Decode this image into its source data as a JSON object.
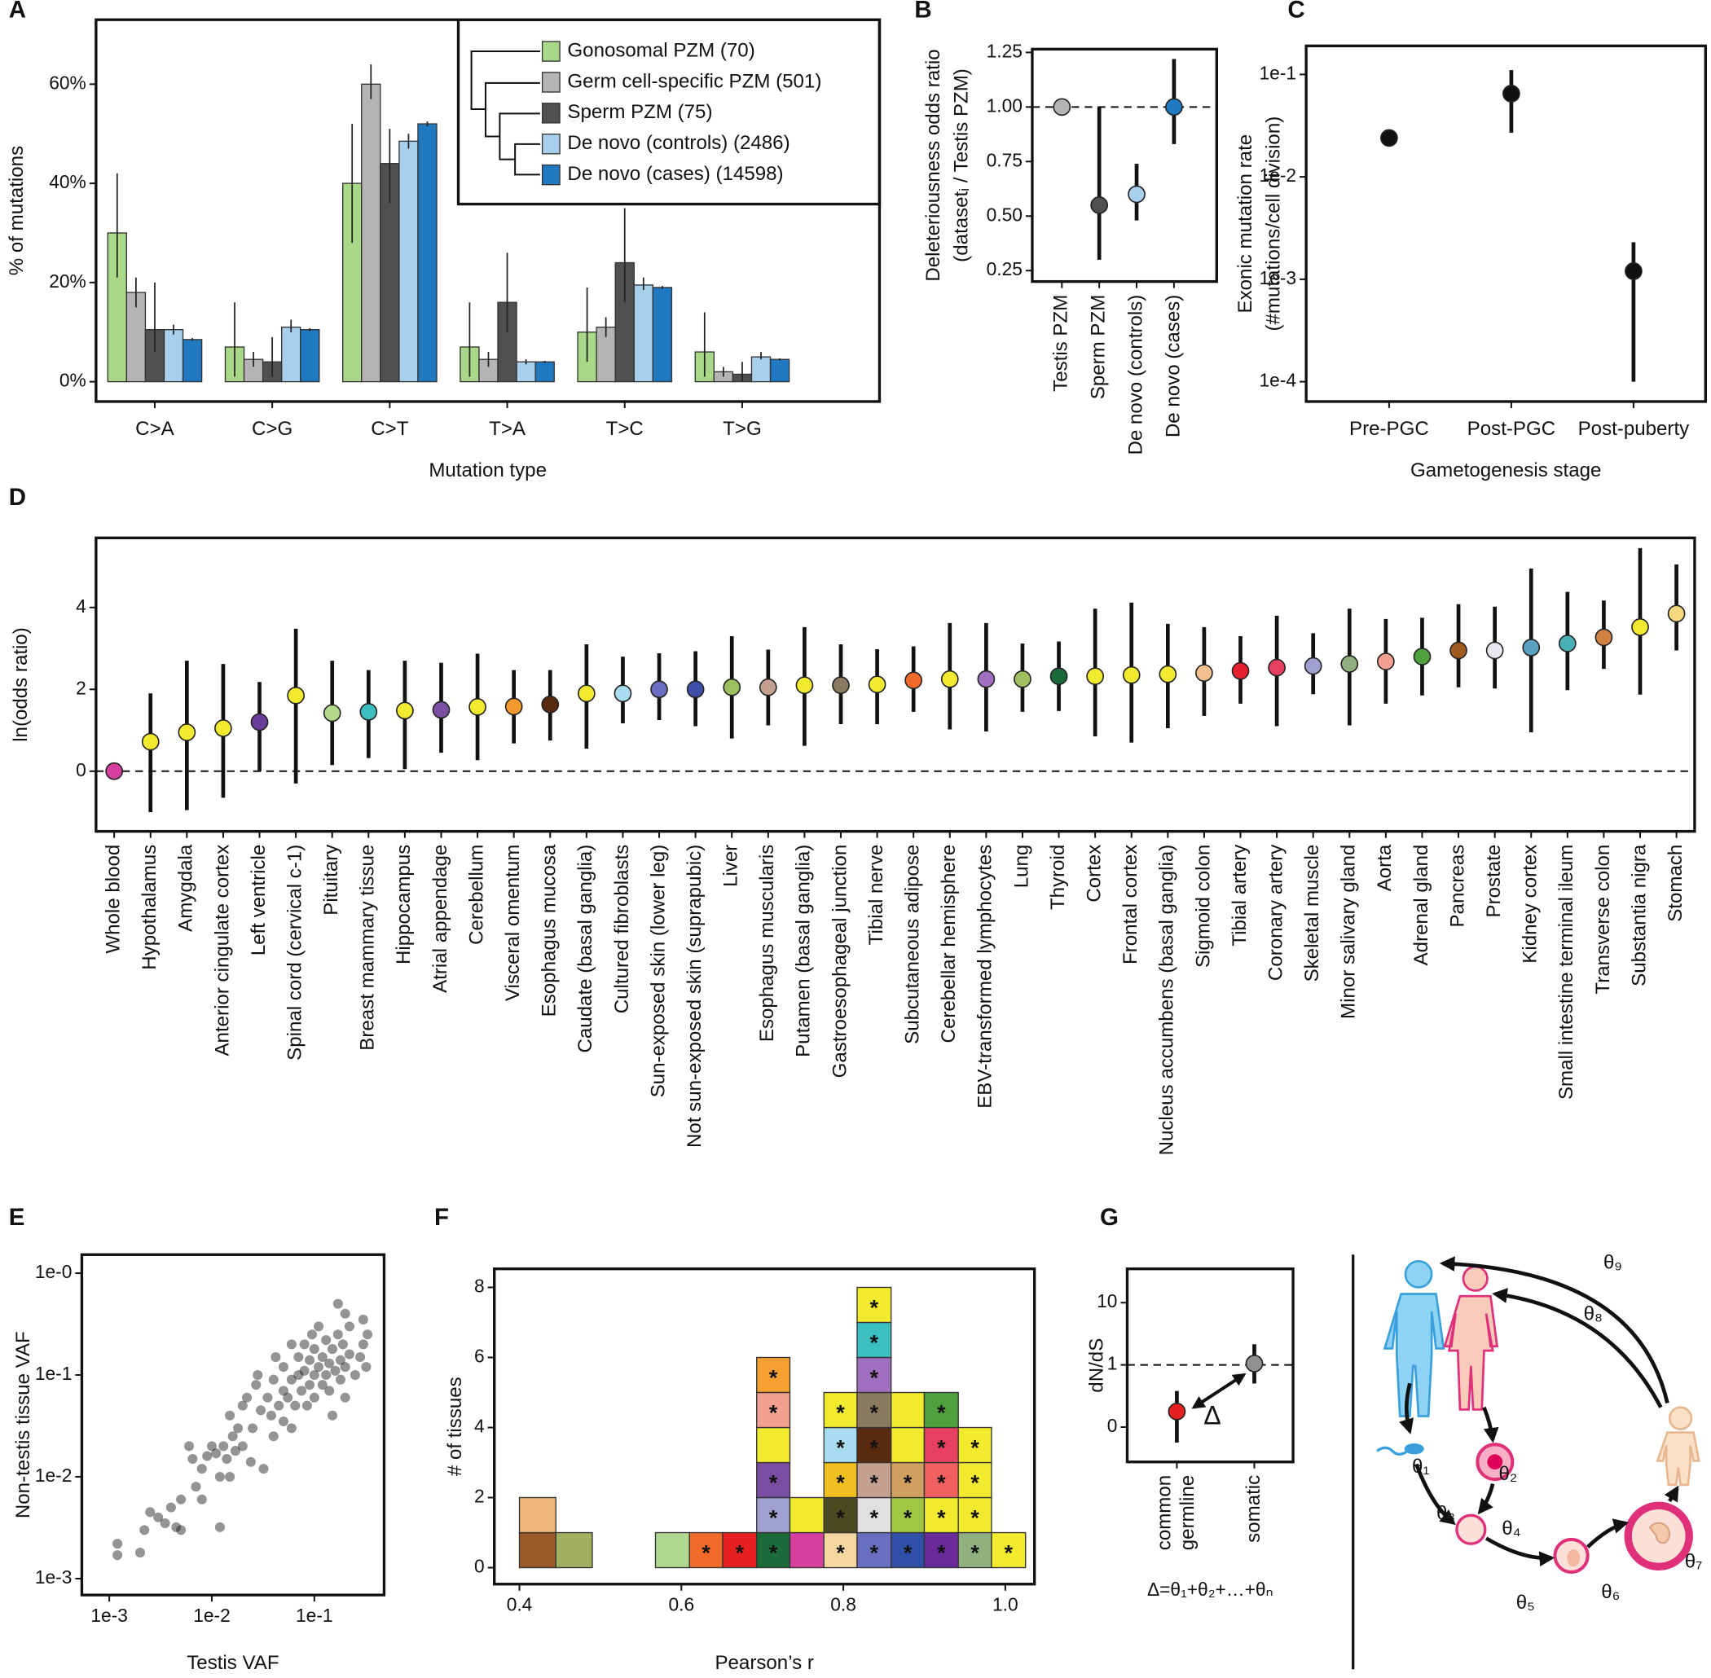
{
  "chart_data": [
    {
      "panel": "A",
      "type": "bar",
      "categories": [
        "C>A",
        "C>G",
        "C>T",
        "T>A",
        "T>C",
        "T>G"
      ],
      "series": [
        {
          "name": "Gonosomal PZM (70)",
          "color": "#a8d888",
          "values": [
            30,
            7,
            40,
            7,
            10,
            6
          ],
          "lower": [
            21,
            1,
            28,
            1,
            4,
            1
          ],
          "upper": [
            42,
            16,
            52,
            16,
            19,
            14
          ]
        },
        {
          "name": "Germ cell-specific PZM (501)",
          "color": "#b4b4b4",
          "values": [
            18,
            4.5,
            60,
            4.5,
            11,
            2
          ],
          "lower": [
            15,
            3,
            57,
            3,
            9,
            1
          ],
          "upper": [
            21,
            6,
            64,
            6,
            13,
            3
          ]
        },
        {
          "name": "Sperm PZM (75)",
          "color": "#505050",
          "values": [
            10.5,
            4,
            44,
            16,
            24,
            1.5
          ],
          "lower": [
            6,
            1,
            36,
            10,
            16,
            0
          ],
          "upper": [
            20,
            9,
            51,
            26,
            35,
            4
          ]
        },
        {
          "name": "De novo (controls) (2486)",
          "color": "#a8d0ec",
          "values": [
            10.5,
            11,
            48.5,
            4,
            19.5,
            5
          ],
          "lower": [
            9.5,
            10,
            47,
            3.5,
            18.5,
            4.5
          ],
          "upper": [
            11.5,
            12.5,
            50,
            4.5,
            21,
            6
          ]
        },
        {
          "name": "De novo (cases) (14598)",
          "color": "#1f78c0",
          "values": [
            8.5,
            10.5,
            52,
            4,
            19,
            4.5
          ],
          "lower": [
            8.3,
            10.2,
            51.5,
            3.8,
            18.7,
            4.3
          ],
          "upper": [
            8.8,
            10.8,
            52.5,
            4.2,
            19.3,
            4.7
          ]
        }
      ],
      "ylim": [
        -4,
        73
      ],
      "yticks": [
        {
          "value": 0,
          "label": "0%"
        },
        {
          "value": 20,
          "label": "20%"
        },
        {
          "value": 40,
          "label": "40%"
        },
        {
          "value": 60,
          "label": "60%"
        }
      ],
      "xlabel": "Mutation type",
      "ylabel": "% of mutations",
      "legend": "top-right"
    },
    {
      "panel": "B",
      "type": "errorbar",
      "categories": [
        "Testis PZM",
        "Sperm PZM",
        "De novo (controls)",
        "De novo (cases)"
      ],
      "values": [
        1.0,
        0.55,
        0.6,
        1.0
      ],
      "lower": [
        null,
        0.3,
        0.48,
        0.83
      ],
      "upper": [
        null,
        1.0,
        0.74,
        1.22
      ],
      "colors": [
        "#b4b4b4",
        "#505050",
        "#a8d0ec",
        "#1f78c0"
      ],
      "ylim": [
        0.2,
        1.265
      ],
      "yticks": [
        0.25,
        {
          "value": 0.5,
          "label": "0.50"
        },
        0.75,
        {
          "value": 1,
          "label": "1.00"
        },
        1.25
      ],
      "hline": 1,
      "ylabel": [
        "Deleteriousness odds ratio",
        "(datasetᵢ / Testis PZM)"
      ]
    },
    {
      "panel": "C",
      "type": "errorbar",
      "categories": [
        "Pre-PGC",
        "Post-PGC",
        "Post-puberty"
      ],
      "values": [
        0.024,
        0.065,
        0.0012
      ],
      "lower": [
        0.02,
        0.027,
        0.0001
      ],
      "upper": [
        0.029,
        0.11,
        0.0023
      ],
      "color": "#111111",
      "yscale": "log",
      "ylim": [
        6.4e-05,
        0.19
      ],
      "yticks": [
        {
          "value": 0.1,
          "label": "1e-1"
        },
        {
          "value": 0.01,
          "label": "1e-2"
        },
        {
          "value": 0.001,
          "label": "1e-3"
        },
        {
          "value": 0.0001,
          "label": "1e-4"
        }
      ],
      "xlabel": "Gametogenesis stage",
      "ylabel": [
        "Exonic mutation rate",
        "(#mutations/cell division)"
      ]
    },
    {
      "panel": "D",
      "type": "errorbar",
      "categories": [
        "Whole blood",
        "Hypothalamus",
        "Amygdala",
        "Anterior cingulate cortex",
        "Left ventricle",
        "Spinal cord (cervical c-1)",
        "Pituitary",
        "Breast mammary tissue",
        "Hippocampus",
        "Atrial appendage",
        "Cerebellum",
        "Visceral omentum",
        "Esophagus mucosa",
        "Caudate (basal ganglia)",
        "Cultured fibroblasts",
        "Sun-exposed skin (lower leg)",
        "Not sun-exposed skin (suprapubic)",
        "Liver",
        "Esophagus muscularis",
        "Putamen (basal ganglia)",
        "Gastroesophageal junction",
        "Tibial nerve",
        "Subcutaneous adipose",
        "Cerebellar hemisphere",
        "EBV-transformed lymphocytes",
        "Lung",
        "Thyroid",
        "Cortex",
        "Frontal cortex",
        "Nucleus accumbens (basal ganglia)",
        "Sigmoid colon",
        "Tibial artery",
        "Coronary artery",
        "Skeletal muscle",
        "Minor salivary gland",
        "Aorta",
        "Adrenal gland",
        "Pancreas",
        "Prostate",
        "Kidney cortex",
        "Small intestine terminal ileum",
        "Transverse colon",
        "Substantia nigra",
        "Stomach"
      ],
      "values": [
        0,
        0.72,
        0.95,
        1.05,
        1.2,
        1.85,
        1.42,
        1.45,
        1.48,
        1.5,
        1.57,
        1.58,
        1.63,
        1.9,
        1.9,
        2.0,
        2.0,
        2.05,
        2.05,
        2.1,
        2.1,
        2.12,
        2.22,
        2.25,
        2.25,
        2.25,
        2.32,
        2.32,
        2.35,
        2.37,
        2.4,
        2.45,
        2.53,
        2.57,
        2.62,
        2.68,
        2.8,
        2.95,
        2.95,
        3.02,
        3.12,
        3.27,
        3.52,
        3.85
      ],
      "lower": [
        null,
        -1.0,
        -0.95,
        -0.65,
        0,
        -0.3,
        0.15,
        0.32,
        0.05,
        0.45,
        0.27,
        0.68,
        0.75,
        0.55,
        1.17,
        1.25,
        1.1,
        0.8,
        1.12,
        0.62,
        1.15,
        1.15,
        1.45,
        1.02,
        0.97,
        1.45,
        1.47,
        0.85,
        0.7,
        1.05,
        1.35,
        1.65,
        1.1,
        1.88,
        1.12,
        1.65,
        1.85,
        2.05,
        2.02,
        0.95,
        1.98,
        2.5,
        1.87,
        2.95
      ],
      "upper": [
        null,
        1.9,
        2.7,
        2.62,
        2.18,
        3.48,
        2.7,
        2.47,
        2.7,
        2.65,
        2.87,
        2.47,
        2.47,
        3.1,
        2.8,
        2.88,
        2.93,
        3.3,
        2.97,
        3.52,
        3.1,
        2.98,
        3.05,
        3.62,
        3.62,
        3.12,
        3.17,
        3.97,
        4.12,
        3.6,
        3.52,
        3.3,
        3.8,
        3.37,
        3.97,
        3.72,
        3.75,
        4.08,
        4.02,
        4.95,
        4.38,
        4.17,
        5.45,
        5.05
      ],
      "colors": [
        "#d63fa0",
        "#f2ea2e",
        "#f2ea2e",
        "#f2ea2e",
        "#6a3d9a",
        "#f2ea2e",
        "#b2d88a",
        "#3bbfbf",
        "#f2ea2e",
        "#7a4ea0",
        "#f2ea2e",
        "#f59a30",
        "#5a2a10",
        "#f2ea2e",
        "#a8dcf0",
        "#6a6ec0",
        "#4050a8",
        "#9cbf60",
        "#c4a090",
        "#f2ea2e",
        "#8c7a60",
        "#f2ea2e",
        "#f26a2a",
        "#f2ea2e",
        "#a070c0",
        "#a0c060",
        "#1a6a3a",
        "#f2ea2e",
        "#f2ea2e",
        "#f2ea2e",
        "#f5c090",
        "#e6202a",
        "#e84060",
        "#a0a0d0",
        "#90b080",
        "#f4a090",
        "#50a040",
        "#a05a20",
        "#e8e8f0",
        "#5aa0c0",
        "#4ab0b8",
        "#d08040",
        "#f2ea2e",
        "#f5d880"
      ],
      "ylim": [
        -1.47,
        5.7
      ],
      "yticks": [
        0,
        2,
        4
      ],
      "hline": 0,
      "ylabel": "ln(odds ratio)"
    },
    {
      "panel": "E",
      "type": "scatter",
      "xscale": "log",
      "yscale": "log",
      "xlim": [
        0.00054,
        0.479
      ],
      "ylim": [
        0.00069,
        1.52
      ],
      "xticks": [
        {
          "value": 0.001,
          "label": "1e-3"
        },
        {
          "value": 0.01,
          "label": "1e-2"
        },
        {
          "value": 0.1,
          "label": "1e-1"
        }
      ],
      "yticks": [
        {
          "value": 0.001,
          "label": "1e-3"
        },
        {
          "value": 0.01,
          "label": "1e-2"
        },
        {
          "value": 0.1,
          "label": "1e-1"
        },
        {
          "value": 1,
          "label": "1e-0"
        }
      ],
      "x": [
        0.0012,
        0.0012,
        0.002,
        0.0022,
        0.0025,
        0.003,
        0.0035,
        0.004,
        0.0045,
        0.005,
        0.005,
        0.006,
        0.0065,
        0.007,
        0.008,
        0.009,
        0.01,
        0.011,
        0.012,
        0.013,
        0.014,
        0.015,
        0.016,
        0.017,
        0.018,
        0.02,
        0.02,
        0.022,
        0.024,
        0.025,
        0.027,
        0.028,
        0.03,
        0.032,
        0.035,
        0.038,
        0.04,
        0.042,
        0.045,
        0.05,
        0.05,
        0.055,
        0.06,
        0.06,
        0.065,
        0.07,
        0.07,
        0.075,
        0.08,
        0.08,
        0.085,
        0.09,
        0.09,
        0.095,
        0.1,
        0.1,
        0.1,
        0.11,
        0.11,
        0.12,
        0.12,
        0.13,
        0.13,
        0.14,
        0.14,
        0.15,
        0.15,
        0.16,
        0.17,
        0.18,
        0.18,
        0.19,
        0.2,
        0.2,
        0.22,
        0.22,
        0.25,
        0.28,
        0.3,
        0.3,
        0.32,
        0.33,
        0.05,
        0.04,
        0.06,
        0.17,
        0.2,
        0.012,
        0.015,
        0.008
      ],
      "y": [
        0.0022,
        0.0017,
        0.0018,
        0.003,
        0.0045,
        0.004,
        0.0035,
        0.005,
        0.0032,
        0.003,
        0.006,
        0.02,
        0.015,
        0.008,
        0.012,
        0.016,
        0.02,
        0.017,
        0.0032,
        0.02,
        0.015,
        0.04,
        0.025,
        0.018,
        0.03,
        0.05,
        0.02,
        0.06,
        0.014,
        0.03,
        0.08,
        0.1,
        0.045,
        0.012,
        0.06,
        0.04,
        0.09,
        0.15,
        0.05,
        0.07,
        0.12,
        0.06,
        0.09,
        0.2,
        0.05,
        0.1,
        0.15,
        0.07,
        0.11,
        0.2,
        0.05,
        0.08,
        0.14,
        0.25,
        0.1,
        0.06,
        0.18,
        0.12,
        0.3,
        0.08,
        0.15,
        0.1,
        0.22,
        0.07,
        0.13,
        0.18,
        0.04,
        0.11,
        0.25,
        0.09,
        0.14,
        0.2,
        0.12,
        0.06,
        0.16,
        0.3,
        0.1,
        0.15,
        0.2,
        0.35,
        0.12,
        0.25,
        0.035,
        0.025,
        0.03,
        0.5,
        0.4,
        0.01,
        0.01,
        0.006
      ],
      "xlabel": "Testis VAF",
      "ylabel": "Non-testis tissue VAF"
    },
    {
      "panel": "F",
      "type": "histogram",
      "bins": [
        0.4,
        0.445,
        0.49,
        0.568,
        0.61,
        0.651,
        0.693,
        0.734,
        0.776,
        0.817,
        0.859,
        0.9,
        0.942,
        0.983,
        1.025
      ],
      "counts": [
        2,
        1,
        0,
        1,
        1,
        1,
        6,
        2,
        5,
        8,
        5,
        5,
        4,
        1
      ],
      "tiles": [
        [
          {
            "color": "#9a5a2a"
          },
          {
            "color": "#f0b878"
          }
        ],
        [
          {
            "color": "#a0b060"
          }
        ],
        [],
        [
          {
            "color": "#b0d890"
          }
        ],
        [
          {
            "color": "#f06a2a",
            "label": "*"
          }
        ],
        [
          {
            "color": "#e62020",
            "label": "*"
          }
        ],
        [
          {
            "color": "#1a6a3a",
            "label": "*"
          },
          {
            "color": "#a0a0d0",
            "label": "*"
          },
          {
            "color": "#7a4ea0",
            "label": "*"
          },
          {
            "color": "#f2ea2e"
          },
          {
            "color": "#f4a090",
            "label": "*"
          },
          {
            "color": "#f5a030",
            "label": "*"
          }
        ],
        [
          {
            "color": "#d63fa0"
          },
          {
            "color": "#f2ea2e"
          }
        ],
        [
          {
            "color": "#f5d8a0",
            "label": "*"
          },
          {
            "color": "#4a4a20",
            "label": "*"
          },
          {
            "color": "#f0c020",
            "label": "*"
          },
          {
            "color": "#a8dcf0",
            "label": "*"
          },
          {
            "color": "#f2ea2e",
            "label": "*"
          }
        ],
        [
          {
            "color": "#6a6ec0",
            "label": "*"
          },
          {
            "color": "#e0e0e0",
            "label": "*"
          },
          {
            "color": "#c4a090",
            "label": "*"
          },
          {
            "color": "#5a2a10",
            "label": "*"
          },
          {
            "color": "#8c7a60",
            "label": "*"
          },
          {
            "color": "#a070c0",
            "label": "*"
          },
          {
            "color": "#3bbfbf",
            "label": "*"
          },
          {
            "color": "#f2ea2e",
            "label": "*"
          }
        ],
        [
          {
            "color": "#3050a8",
            "label": "*"
          },
          {
            "color": "#a0c840",
            "label": "*"
          },
          {
            "color": "#d0a060",
            "label": "*"
          },
          {
            "color": "#f2ea2e"
          },
          {
            "color": "#f2ea2e"
          }
        ],
        [
          {
            "color": "#6a2a9a",
            "label": "*"
          },
          {
            "color": "#f2ea2e",
            "label": "*"
          },
          {
            "color": "#f06060",
            "label": "*"
          },
          {
            "color": "#e84060",
            "label": "*"
          },
          {
            "color": "#50a040",
            "label": "*"
          }
        ],
        [
          {
            "color": "#90b080",
            "label": "*"
          },
          {
            "color": "#f2ea2e",
            "label": "*"
          },
          {
            "color": "#f2ea2e",
            "label": "*"
          },
          {
            "color": "#f2ea2e",
            "label": "*"
          }
        ],
        [
          {
            "color": "#f2ea2e",
            "label": "*"
          }
        ]
      ],
      "xlim": [
        0.369,
        1.036
      ],
      "ylim": [
        -0.47,
        8.53
      ],
      "xticks": [
        0.4,
        0.6,
        0.8,
        {
          "value": 1,
          "label": "1.0"
        }
      ],
      "yticks": [
        0,
        2,
        4,
        6,
        8
      ],
      "xlabel": "Pearson’s r",
      "ylabel": "# of tissues"
    },
    {
      "panel": "G",
      "type": "errorbar",
      "categories": [
        [
          "common",
          "germline"
        ],
        [
          "somatic"
        ]
      ],
      "values": [
        0.25,
        1.05
      ],
      "lower": [
        -0.25,
        0.7
      ],
      "upper": [
        0.58,
        2.15
      ],
      "colors": [
        "#e62020",
        "#909090"
      ],
      "yscale": "symlog",
      "linthresh": 1,
      "ylim": [
        -0.56,
        35
      ],
      "yticks": [
        0,
        1,
        10
      ],
      "hline": 1,
      "ylabel": "dN/dS",
      "annotation": "Δ",
      "formula": "Δ=θ₁+θ₂+…+θₙ"
    }
  ],
  "diagram": {
    "labels": [
      "θ₁",
      "θ₂",
      "θ₃",
      "θ₄",
      "θ₅",
      "θ₆",
      "θ₇",
      "θ₈",
      "θ₉"
    ]
  }
}
